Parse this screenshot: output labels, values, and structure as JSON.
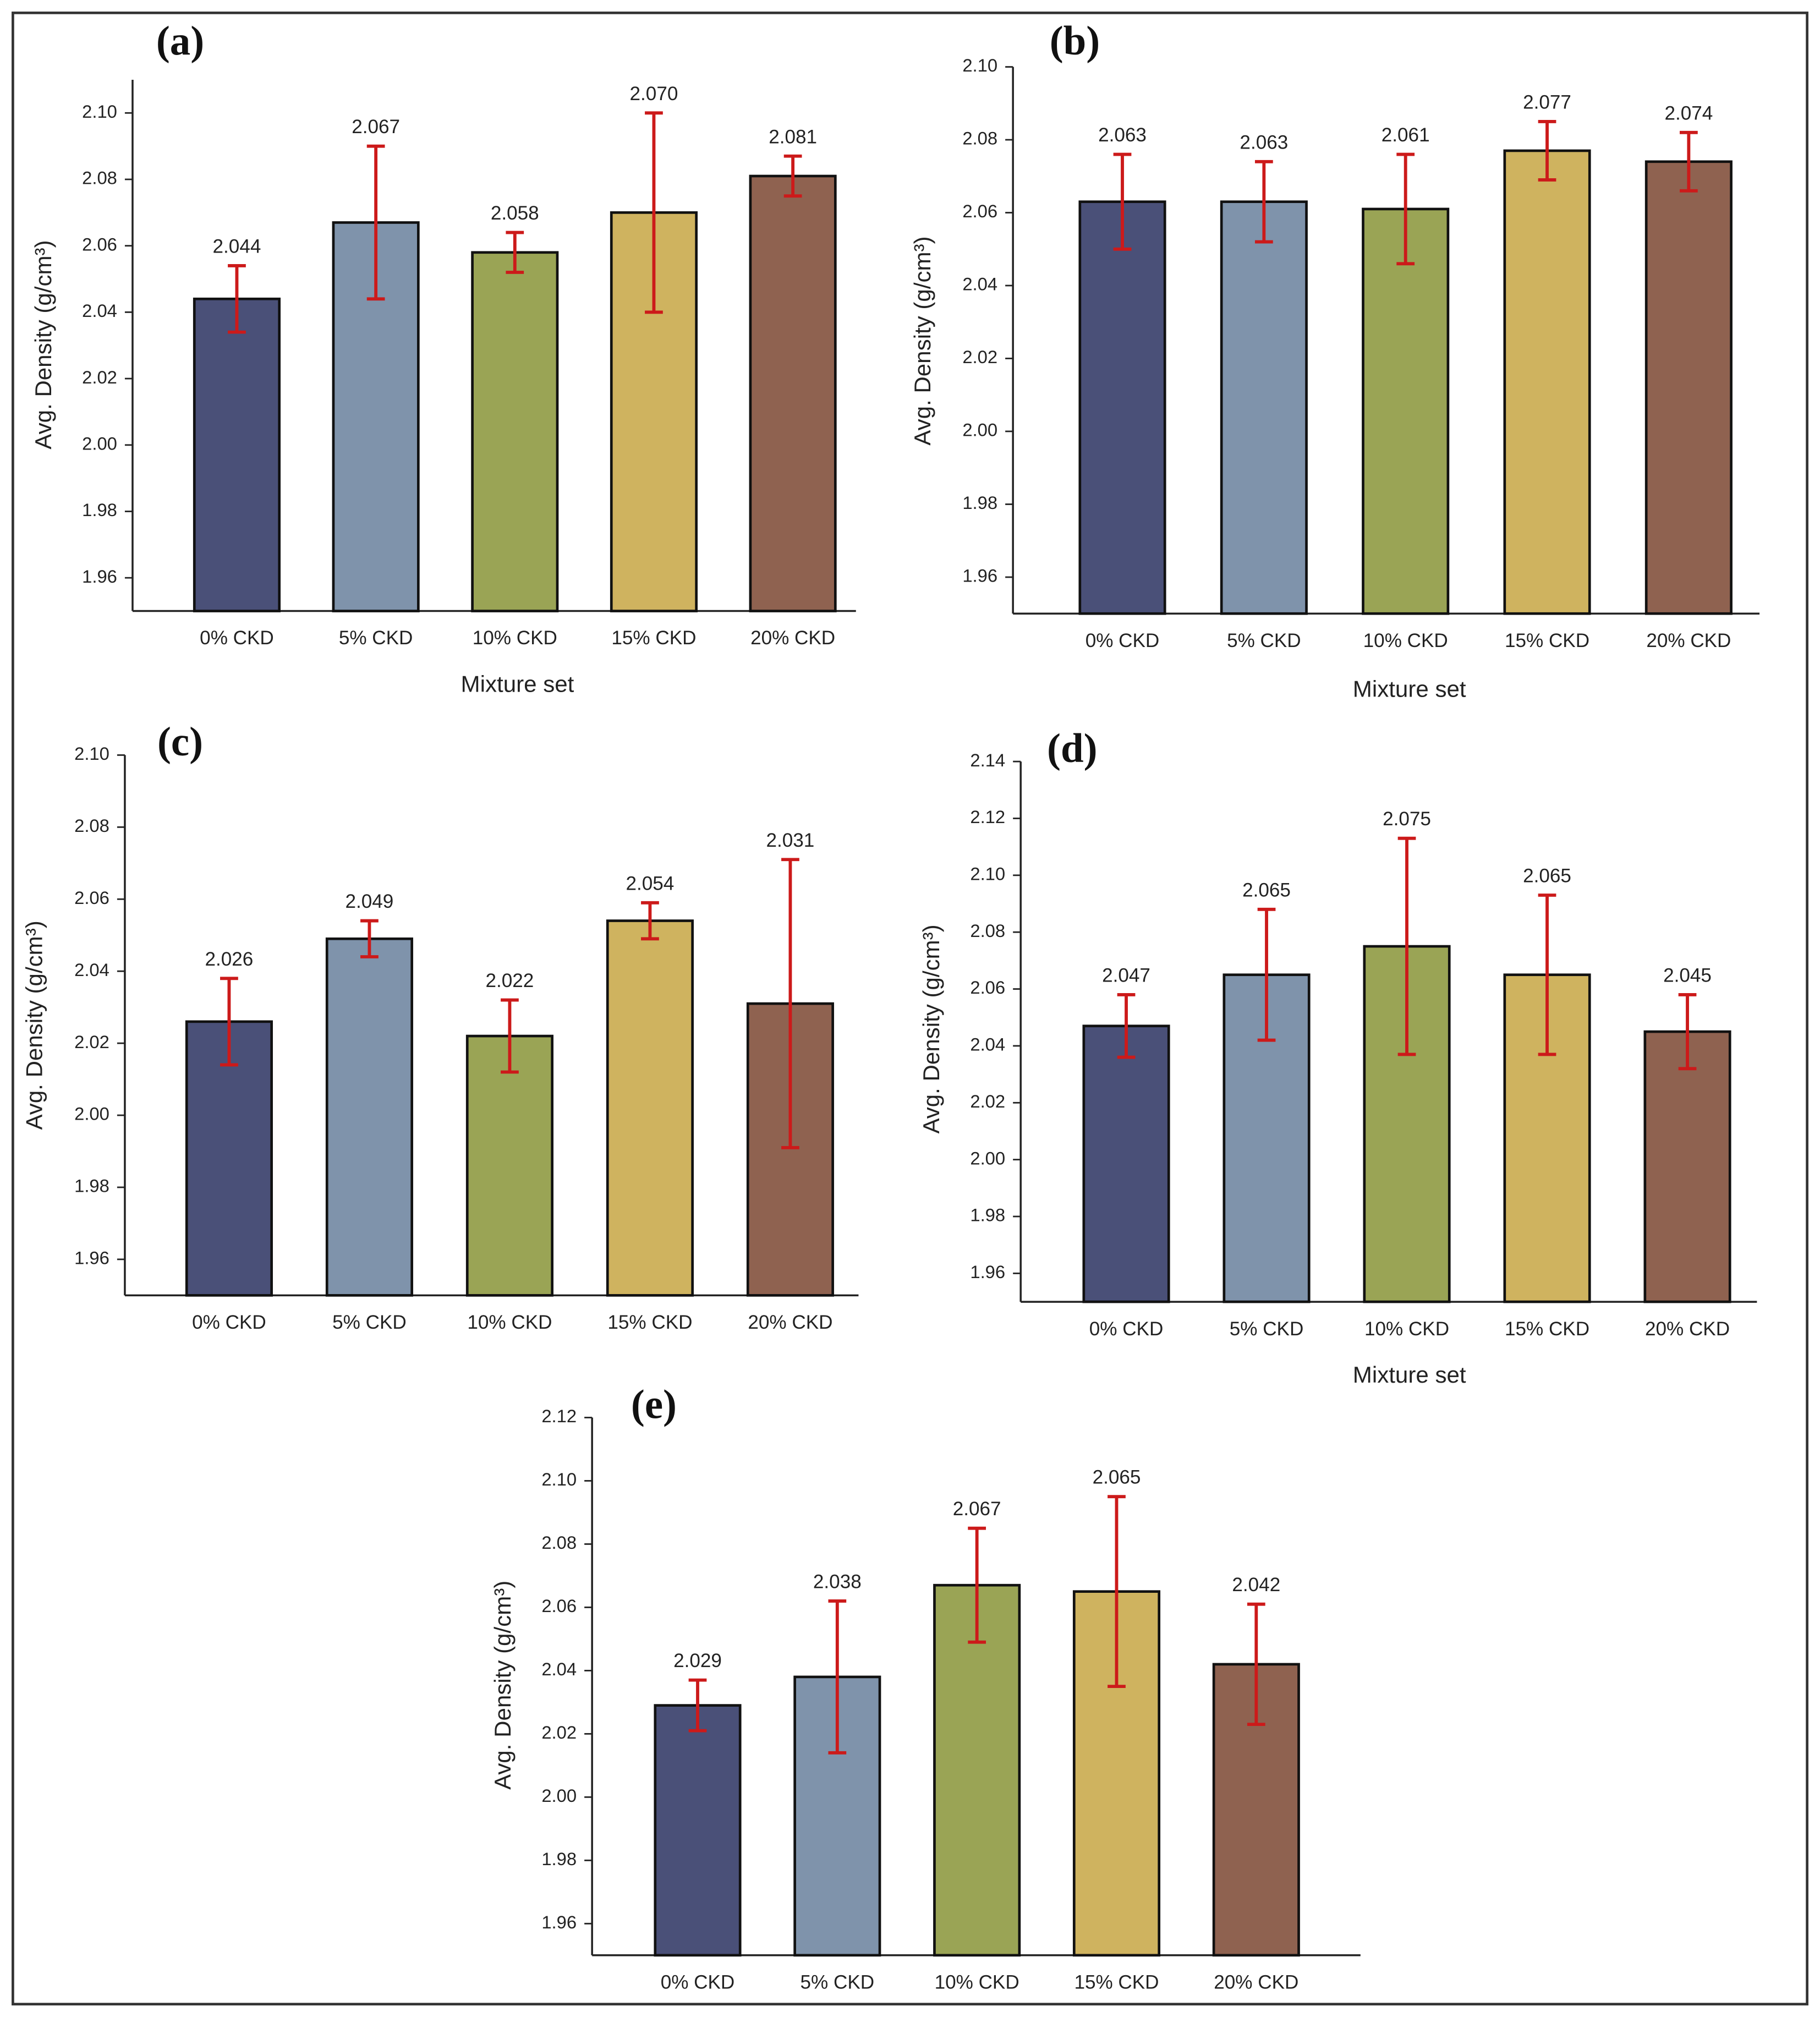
{
  "chart_data": [
    {
      "type": "bar",
      "panel_label": "(a)",
      "ylabel": "Avg. Density (g/cm³)",
      "xlabel": "Mixture set",
      "categories": [
        "0% CKD",
        "5% CKD",
        "10% CKD",
        "15% CKD",
        "20% CKD"
      ],
      "values": [
        2.044,
        2.067,
        2.058,
        2.07,
        2.081
      ],
      "value_labels": [
        "2.044",
        "2.067",
        "2.058",
        "2.070",
        "2.081"
      ],
      "errors": [
        0.01,
        0.023,
        0.006,
        0.03,
        0.006
      ],
      "colors": [
        "#4a5078",
        "#7f93ab",
        "#9aa455",
        "#cfb35f",
        "#8f6250"
      ],
      "error_color": "#cc1a1a",
      "ylim": [
        1.95,
        2.11
      ],
      "yticks": [
        {
          "value": 1.96,
          "label": "1.96"
        },
        {
          "value": 1.98,
          "label": "1.98"
        },
        {
          "value": 2.0,
          "label": "2.00"
        },
        {
          "value": 2.02,
          "label": "2.02"
        },
        {
          "value": 2.04,
          "label": "2.04"
        },
        {
          "value": 2.06,
          "label": "2.06"
        },
        {
          "value": 2.08,
          "label": "2.08"
        },
        {
          "value": 2.1,
          "label": "2.10"
        }
      ]
    },
    {
      "type": "bar",
      "panel_label": "(b)",
      "ylabel": "Avg. Density (g/cm³)",
      "xlabel": "Mixture set",
      "categories": [
        "0% CKD",
        "5% CKD",
        "10% CKD",
        "15% CKD",
        "20% CKD"
      ],
      "values": [
        2.063,
        2.063,
        2.061,
        2.077,
        2.074
      ],
      "value_labels": [
        "2.063",
        "2.063",
        "2.061",
        "2.077",
        "2.074"
      ],
      "errors": [
        0.013,
        0.011,
        0.015,
        0.008,
        0.008
      ],
      "colors": [
        "#4a5078",
        "#7f93ab",
        "#9aa455",
        "#cfb35f",
        "#8f6250"
      ],
      "error_color": "#cc1a1a",
      "ylim": [
        1.95,
        2.1
      ],
      "yticks": [
        {
          "value": 1.96,
          "label": "1.96"
        },
        {
          "value": 1.98,
          "label": "1.98"
        },
        {
          "value": 2.0,
          "label": "2.00"
        },
        {
          "value": 2.02,
          "label": "2.02"
        },
        {
          "value": 2.04,
          "label": "2.04"
        },
        {
          "value": 2.06,
          "label": "2.06"
        },
        {
          "value": 2.08,
          "label": "2.08"
        },
        {
          "value": 2.1,
          "label": "2.10"
        }
      ]
    },
    {
      "type": "bar",
      "panel_label": "(c)",
      "ylabel": "Avg. Density (g/cm³)",
      "categories": [
        "0% CKD",
        "5% CKD",
        "10% CKD",
        "15% CKD",
        "20% CKD"
      ],
      "values": [
        2.026,
        2.049,
        2.022,
        2.054,
        2.031
      ],
      "value_labels": [
        "2.026",
        "2.049",
        "2.022",
        "2.054",
        "2.031"
      ],
      "errors": [
        0.012,
        0.005,
        0.01,
        0.005,
        0.04
      ],
      "colors": [
        "#4a5078",
        "#7f93ab",
        "#9aa455",
        "#cfb35f",
        "#8f6250"
      ],
      "error_color": "#cc1a1a",
      "ylim": [
        1.95,
        2.1
      ],
      "yticks": [
        {
          "value": 1.96,
          "label": "1.96"
        },
        {
          "value": 1.98,
          "label": "1.98"
        },
        {
          "value": 2.0,
          "label": "2.00"
        },
        {
          "value": 2.02,
          "label": "2.02"
        },
        {
          "value": 2.04,
          "label": "2.04"
        },
        {
          "value": 2.06,
          "label": "2.06"
        },
        {
          "value": 2.08,
          "label": "2.08"
        },
        {
          "value": 2.1,
          "label": "2.10"
        }
      ]
    },
    {
      "type": "bar",
      "panel_label": "(d)",
      "ylabel": "Avg. Density (g/cm³)",
      "xlabel": "Mixture set",
      "categories": [
        "0% CKD",
        "5% CKD",
        "10% CKD",
        "15% CKD",
        "20% CKD"
      ],
      "values": [
        2.047,
        2.065,
        2.075,
        2.065,
        2.045
      ],
      "value_labels": [
        "2.047",
        "2.065",
        "2.075",
        "2.065",
        "2.045"
      ],
      "errors": [
        0.011,
        0.023,
        0.038,
        0.028,
        0.013
      ],
      "colors": [
        "#4a5078",
        "#7f93ab",
        "#9aa455",
        "#cfb35f",
        "#8f6250"
      ],
      "error_color": "#cc1a1a",
      "ylim": [
        1.95,
        2.14
      ],
      "yticks": [
        {
          "value": 1.96,
          "label": "1.96"
        },
        {
          "value": 1.98,
          "label": "1.98"
        },
        {
          "value": 2.0,
          "label": "2.00"
        },
        {
          "value": 2.02,
          "label": "2.02"
        },
        {
          "value": 2.04,
          "label": "2.04"
        },
        {
          "value": 2.06,
          "label": "2.06"
        },
        {
          "value": 2.08,
          "label": "2.08"
        },
        {
          "value": 2.1,
          "label": "2.10"
        },
        {
          "value": 2.12,
          "label": "2.12"
        },
        {
          "value": 2.14,
          "label": "2.14"
        }
      ]
    },
    {
      "type": "bar",
      "panel_label": "(e)",
      "ylabel": "Avg. Density (g/cm³)",
      "categories": [
        "0% CKD",
        "5% CKD",
        "10% CKD",
        "15% CKD",
        "20% CKD"
      ],
      "values": [
        2.029,
        2.038,
        2.067,
        2.065,
        2.042
      ],
      "value_labels": [
        "2.029",
        "2.038",
        "2.067",
        "2.065",
        "2.042"
      ],
      "errors": [
        0.008,
        0.024,
        0.018,
        0.03,
        0.019
      ],
      "colors": [
        "#4a5078",
        "#7f93ab",
        "#9aa455",
        "#cfb35f",
        "#8f6250"
      ],
      "error_color": "#cc1a1a",
      "ylim": [
        1.95,
        2.12
      ],
      "yticks": [
        {
          "value": 1.96,
          "label": "1.96"
        },
        {
          "value": 1.98,
          "label": "1.98"
        },
        {
          "value": 2.0,
          "label": "2.00"
        },
        {
          "value": 2.02,
          "label": "2.02"
        },
        {
          "value": 2.04,
          "label": "2.04"
        },
        {
          "value": 2.06,
          "label": "2.06"
        },
        {
          "value": 2.08,
          "label": "2.08"
        },
        {
          "value": 2.1,
          "label": "2.10"
        },
        {
          "value": 2.12,
          "label": "2.12"
        }
      ]
    }
  ]
}
